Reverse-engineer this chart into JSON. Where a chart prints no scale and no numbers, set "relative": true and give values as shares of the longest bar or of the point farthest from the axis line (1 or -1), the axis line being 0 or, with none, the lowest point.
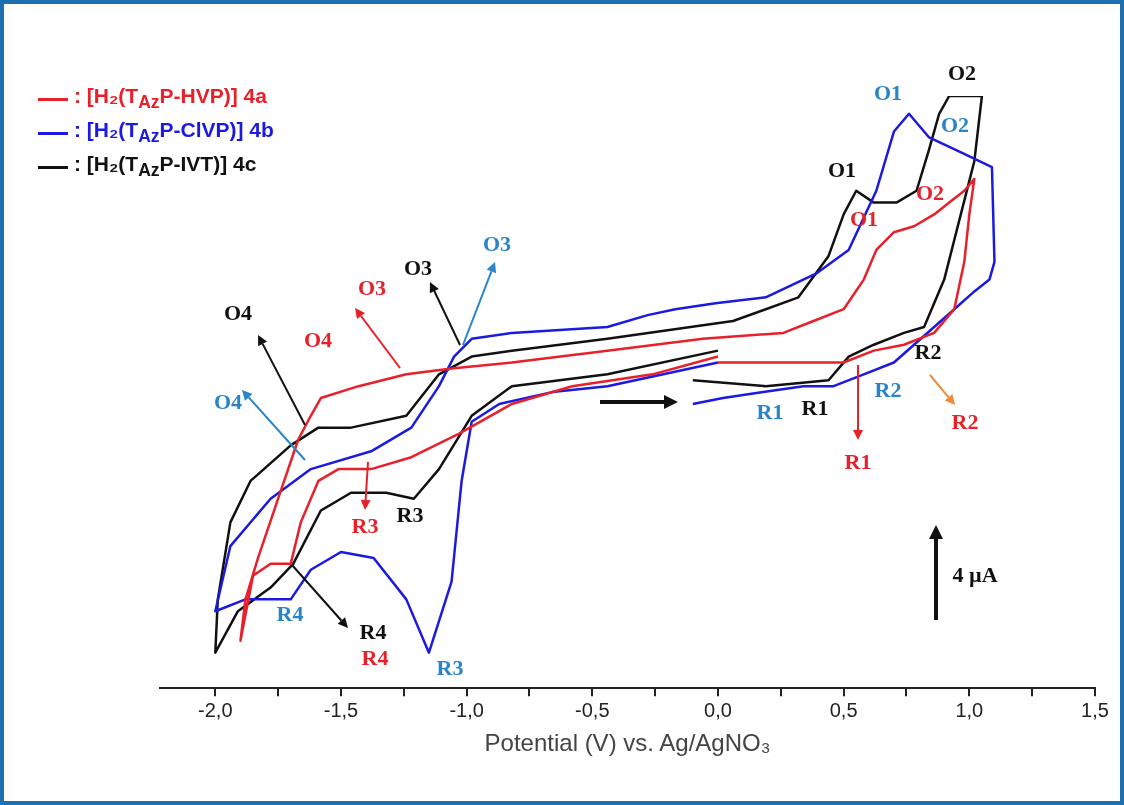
{
  "chart_data": {
    "type": "line",
    "relative": true,
    "xlabel": "Potential (V) vs. Ag/AgNO₃",
    "legend": "top left",
    "marker": "none",
    "grid": false,
    "tick_labels": "x",
    "xlim": [
      -2.22,
      1.5
    ],
    "xticks": [
      {
        "value": -2,
        "label": "-2,0"
      },
      {
        "value": -1.75,
        "label": null
      },
      {
        "value": -1.5,
        "label": "-1,5"
      },
      {
        "value": -1.25,
        "label": null
      },
      {
        "value": -1,
        "label": "-1,0"
      },
      {
        "value": -0.75,
        "label": null
      },
      {
        "value": -0.5,
        "label": "-0,5"
      },
      {
        "value": -0.25,
        "label": null
      },
      {
        "value": 0,
        "label": "0,0"
      },
      {
        "value": 0.25,
        "label": null
      },
      {
        "value": 0.5,
        "label": "0,5"
      },
      {
        "value": 0.75,
        "label": null
      },
      {
        "value": 1,
        "label": "1,0"
      },
      {
        "value": 1.25,
        "label": null
      },
      {
        "value": 1.5,
        "label": "1,5"
      }
    ],
    "series": [
      {
        "name": ": [H₂(T$_{Az}$P-HVP)] 4a",
        "color": "#e8202a",
        "x": [
          0.0,
          0.26,
          0.5,
          0.62,
          0.74,
          0.86,
          0.94,
          0.98,
          1.0,
          1.02,
          0.98,
          0.92,
          0.86,
          0.78,
          0.7,
          0.63,
          0.58,
          0.5,
          0.38,
          0.26,
          -0.06,
          -0.44,
          -0.82,
          -1.06,
          -1.24,
          -1.43,
          -1.58,
          -1.62,
          -1.67,
          -1.75,
          -1.83,
          -1.88,
          -1.9,
          -1.85,
          -1.78,
          -1.7,
          -1.66,
          -1.59,
          -1.51,
          -1.38,
          -1.22,
          -1.03,
          -0.82,
          -0.58,
          -0.26,
          0.0
        ],
        "values": [
          0.55,
          0.55,
          0.55,
          0.57,
          0.58,
          0.6,
          0.64,
          0.72,
          0.8,
          0.86,
          0.84,
          0.82,
          0.8,
          0.78,
          0.77,
          0.74,
          0.69,
          0.64,
          0.62,
          0.6,
          0.59,
          0.57,
          0.55,
          0.54,
          0.53,
          0.51,
          0.49,
          0.46,
          0.42,
          0.32,
          0.22,
          0.15,
          0.08,
          0.19,
          0.21,
          0.21,
          0.28,
          0.35,
          0.37,
          0.37,
          0.39,
          0.43,
          0.48,
          0.51,
          0.53,
          0.56
        ]
      },
      {
        "name": ": [H₂(T$_{Az}$P-ClVP)] 4b",
        "color": "#1a1ae0",
        "x": [
          -0.1,
          0.02,
          0.18,
          0.34,
          0.46,
          0.58,
          0.7,
          0.78,
          0.86,
          0.94,
          1.02,
          1.08,
          1.1,
          1.09,
          0.99,
          0.84,
          0.76,
          0.7,
          0.63,
          0.52,
          0.39,
          0.19,
          -0.01,
          -0.17,
          -0.28,
          -0.44,
          -0.82,
          -0.98,
          -1.05,
          -1.11,
          -1.22,
          -1.38,
          -1.62,
          -1.78,
          -1.94,
          -2.0,
          -1.88,
          -1.7,
          -1.62,
          -1.5,
          -1.37,
          -1.24,
          -1.15,
          -1.06,
          -1.02,
          -0.98,
          -0.87,
          -0.66,
          -0.44,
          0.0
        ],
        "values": [
          0.48,
          0.49,
          0.5,
          0.51,
          0.51,
          0.53,
          0.55,
          0.58,
          0.61,
          0.64,
          0.67,
          0.69,
          0.72,
          0.88,
          0.9,
          0.93,
          0.97,
          0.94,
          0.84,
          0.74,
          0.7,
          0.66,
          0.65,
          0.64,
          0.63,
          0.61,
          0.6,
          0.59,
          0.56,
          0.51,
          0.44,
          0.4,
          0.37,
          0.32,
          0.24,
          0.13,
          0.15,
          0.15,
          0.2,
          0.23,
          0.22,
          0.15,
          0.06,
          0.18,
          0.35,
          0.45,
          0.48,
          0.5,
          0.51,
          0.55
        ]
      },
      {
        "name": ": [H₂(T$_{Az}$P-IVT)] 4c",
        "color": "#111111",
        "x": [
          -0.1,
          0.19,
          0.44,
          0.52,
          0.62,
          0.74,
          0.82,
          0.9,
          0.96,
          1.02,
          1.05,
          0.92,
          0.88,
          0.84,
          0.79,
          0.71,
          0.62,
          0.55,
          0.5,
          0.44,
          0.32,
          0.06,
          -0.44,
          -0.82,
          -0.98,
          -1.11,
          -1.24,
          -1.46,
          -1.59,
          -1.7,
          -1.86,
          -1.94,
          -1.99,
          -2.0,
          -1.91,
          -1.78,
          -1.69,
          -1.58,
          -1.46,
          -1.32,
          -1.21,
          -1.11,
          -0.98,
          -0.82,
          -0.44,
          0.0
        ],
        "values": [
          0.52,
          0.51,
          0.52,
          0.56,
          0.58,
          0.6,
          0.61,
          0.69,
          0.79,
          0.89,
          1.0,
          1.0,
          0.97,
          0.91,
          0.84,
          0.82,
          0.82,
          0.84,
          0.8,
          0.73,
          0.66,
          0.62,
          0.59,
          0.57,
          0.56,
          0.53,
          0.46,
          0.44,
          0.44,
          0.41,
          0.35,
          0.28,
          0.15,
          0.06,
          0.13,
          0.17,
          0.21,
          0.3,
          0.33,
          0.33,
          0.32,
          0.37,
          0.46,
          0.51,
          0.53,
          0.57
        ]
      }
    ],
    "annotations": [
      "O1",
      "O2",
      "R1",
      "R2",
      "O3",
      "O4",
      "R3",
      "R4",
      "O1",
      "O2",
      "R1",
      "R2",
      "O3",
      "O4",
      "R3",
      "R4",
      "O1",
      "O2",
      "R1",
      "R2",
      "O3",
      "O4",
      "R3",
      "R4",
      "4 µA"
    ]
  }
}
